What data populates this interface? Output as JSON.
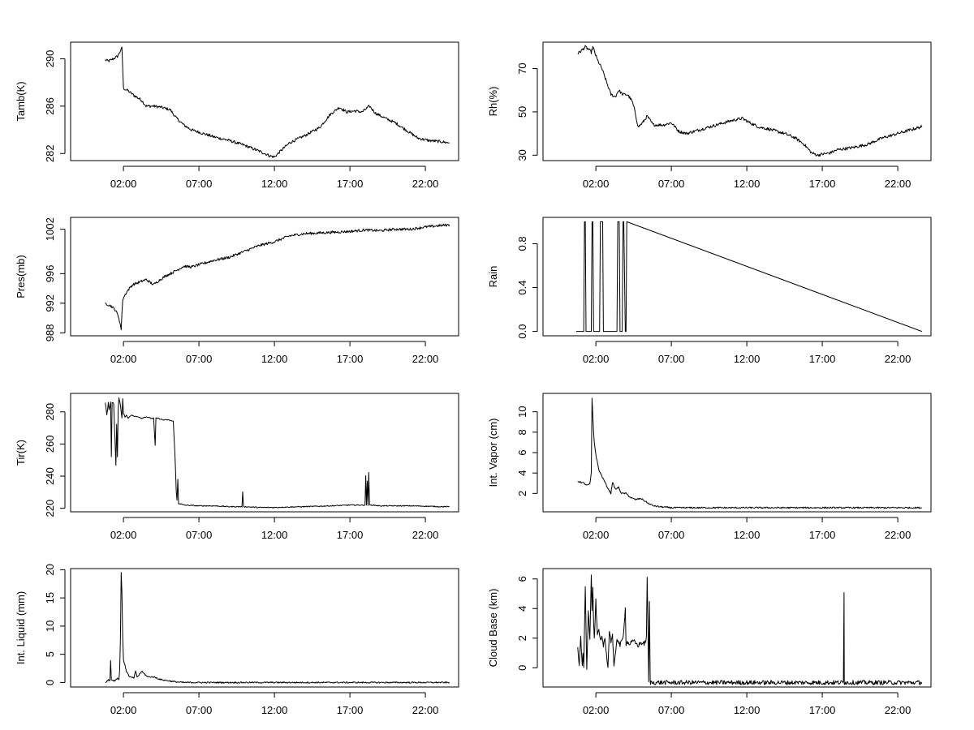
{
  "chart_data": [
    {
      "id": "tamb",
      "type": "line",
      "ylabel": "Tamb(K)",
      "xlim": [
        -1.5,
        24.2
      ],
      "ylim": [
        281.4,
        291.4
      ],
      "x_ticks": [
        2,
        7,
        12,
        17,
        22
      ],
      "x_tick_labels": [
        "02:00",
        "07:00",
        "12:00",
        "17:00",
        "22:00"
      ],
      "y_ticks": [
        282,
        286,
        290
      ],
      "y_tick_labels": [
        "282",
        "286",
        "290"
      ],
      "noise": 0.12,
      "x": [
        0.8,
        1.0,
        1.2,
        1.6,
        1.9,
        2.0,
        2.3,
        2.7,
        3.2,
        3.5,
        4.0,
        4.5,
        5.1,
        5.5,
        6.0,
        6.5,
        7.0,
        8.0,
        9.0,
        10.0,
        11.0,
        11.7,
        12.0,
        12.4,
        13.0,
        14.0,
        15.0,
        15.7,
        16.3,
        16.8,
        17.3,
        17.8,
        18.3,
        18.7,
        19.3,
        20.0,
        20.7,
        21.5,
        22.2,
        23.0,
        23.6
      ],
      "y": [
        289.9,
        289.8,
        289.9,
        290.2,
        290.9,
        287.5,
        287.3,
        286.9,
        286.5,
        286.0,
        286.0,
        285.9,
        285.7,
        285.0,
        284.4,
        284.0,
        283.8,
        283.4,
        283.1,
        282.7,
        282.2,
        281.8,
        281.7,
        282.2,
        282.9,
        283.5,
        284.2,
        285.3,
        285.9,
        285.5,
        285.6,
        285.5,
        286.0,
        285.4,
        285.0,
        284.6,
        284.0,
        283.3,
        283.1,
        283.0,
        282.9
      ]
    },
    {
      "id": "rh",
      "type": "line",
      "ylabel": "Rh(%)",
      "xlim": [
        -1.5,
        24.2
      ],
      "ylim": [
        27.5,
        82.2
      ],
      "x_ticks": [
        2,
        7,
        12,
        17,
        22
      ],
      "x_tick_labels": [
        "02:00",
        "07:00",
        "12:00",
        "17:00",
        "22:00"
      ],
      "y_ticks": [
        30,
        50,
        70
      ],
      "y_tick_labels": [
        "30",
        "50",
        "70"
      ],
      "noise": 0.7,
      "x": [
        0.8,
        1.0,
        1.3,
        1.5,
        1.7,
        1.8,
        2.1,
        2.4,
        2.7,
        3.0,
        3.3,
        3.5,
        3.8,
        4.1,
        4.4,
        4.6,
        4.8,
        5.1,
        5.4,
        5.8,
        6.5,
        7.0,
        7.5,
        8.0,
        8.5,
        9.0,
        10.0,
        11.0,
        11.7,
        12.2,
        12.8,
        13.5,
        14.5,
        15.2,
        15.8,
        16.3,
        16.7,
        17.0,
        17.5,
        18.0,
        19.0,
        20.0,
        21.0,
        22.0,
        23.0,
        23.5,
        23.6
      ],
      "y": [
        77.0,
        78.0,
        80.0,
        79.0,
        77.5,
        80.0,
        74.0,
        70.0,
        64.0,
        58.0,
        57.0,
        60.0,
        58.0,
        58.0,
        55.0,
        50.0,
        43.0,
        45.0,
        48.0,
        44.0,
        44.0,
        45.0,
        41.0,
        40.0,
        41.0,
        42.0,
        44.0,
        46.0,
        47.0,
        45.0,
        43.0,
        42.0,
        40.0,
        38.0,
        35.0,
        31.0,
        30.0,
        30.5,
        31.0,
        32.5,
        33.5,
        35.0,
        38.0,
        40.0,
        42.0,
        43.0,
        43.0
      ]
    },
    {
      "id": "pres",
      "type": "line",
      "ylabel": "Pres(mb)",
      "xlim": [
        -1.5,
        24.2
      ],
      "ylim": [
        987.6,
        1003.6
      ],
      "x_ticks": [
        2,
        7,
        12,
        17,
        22
      ],
      "x_tick_labels": [
        "02:00",
        "07:00",
        "12:00",
        "17:00",
        "22:00"
      ],
      "y_ticks": [
        988,
        992,
        996,
        1002
      ],
      "y_tick_labels": [
        "988",
        "992",
        "996",
        "1002"
      ],
      "noise": 0.18,
      "x": [
        0.8,
        1.2,
        1.5,
        1.7,
        1.85,
        1.95,
        2.2,
        2.6,
        3.0,
        3.5,
        4.0,
        4.3,
        4.8,
        5.3,
        6.0,
        6.5,
        7.0,
        8.0,
        9.0,
        10.0,
        11.0,
        12.0,
        13.0,
        14.0,
        15.0,
        16.0,
        17.0,
        18.0,
        19.0,
        20.0,
        21.0,
        22.0,
        23.0,
        23.6
      ],
      "y": [
        992.0,
        991.6,
        991.0,
        990.0,
        988.5,
        992.5,
        993.5,
        994.5,
        994.8,
        995.2,
        994.5,
        995.0,
        995.7,
        996.2,
        997.0,
        996.9,
        997.2,
        997.8,
        998.2,
        999.0,
        999.8,
        1000.3,
        1001.1,
        1001.4,
        1001.5,
        1001.6,
        1001.7,
        1001.9,
        1001.8,
        1002.0,
        1002.0,
        1002.3,
        1002.5,
        1002.6
      ]
    },
    {
      "id": "rain",
      "type": "line",
      "ylabel": "Rain",
      "xlim": [
        -1.5,
        24.2
      ],
      "ylim": [
        -0.04,
        1.04
      ],
      "x_ticks": [
        2,
        7,
        12,
        17,
        22
      ],
      "x_tick_labels": [
        "02:00",
        "07:00",
        "12:00",
        "17:00",
        "22:00"
      ],
      "y_ticks": [
        0,
        0.4,
        0.8
      ],
      "y_tick_labels": [
        "0.0",
        "0.4",
        "0.8"
      ],
      "noise": 0,
      "x": [
        0.7,
        1.2,
        1.25,
        1.3,
        1.35,
        1.7,
        1.75,
        1.8,
        1.85,
        2.25,
        2.3,
        2.45,
        2.5,
        2.8,
        3.4,
        3.45,
        3.55,
        3.6,
        3.75,
        3.8,
        3.85,
        3.95,
        4.0,
        4.05,
        23.6
      ],
      "y": [
        0,
        0,
        1,
        1,
        0,
        0,
        1,
        1,
        0,
        0,
        1,
        1,
        0,
        0,
        0,
        1,
        1,
        0,
        0,
        1,
        1,
        0,
        0,
        1,
        0
      ]
    },
    {
      "id": "tir",
      "type": "line",
      "ylabel": "Tir(K)",
      "xlim": [
        -1.5,
        24.2
      ],
      "ylim": [
        217.8,
        291.5
      ],
      "x_ticks": [
        2,
        7,
        12,
        17,
        22
      ],
      "x_tick_labels": [
        "02:00",
        "07:00",
        "12:00",
        "17:00",
        "22:00"
      ],
      "y_ticks": [
        220,
        240,
        260,
        280
      ],
      "y_tick_labels": [
        "220",
        "240",
        "260",
        "280"
      ],
      "noise": 0.3,
      "x": [
        0.8,
        0.9,
        1.0,
        1.05,
        1.15,
        1.2,
        1.25,
        1.35,
        1.45,
        1.5,
        1.55,
        1.6,
        1.65,
        1.7,
        1.8,
        1.9,
        1.95,
        2.0,
        2.1,
        2.2,
        2.3,
        2.5,
        2.8,
        3.0,
        3.2,
        3.5,
        3.8,
        4.0,
        4.1,
        4.15,
        4.3,
        4.6,
        5.0,
        5.3,
        5.4,
        5.5,
        5.55,
        5.6,
        5.65,
        5.7,
        6.0,
        7.0,
        8.0,
        9.0,
        9.85,
        9.9,
        9.95,
        10.0,
        11.0,
        12.0,
        13.0,
        14.0,
        15.0,
        16.0,
        17.0,
        17.5,
        18.0,
        18.05,
        18.1,
        18.15,
        18.2,
        18.25,
        18.3,
        18.4,
        18.5,
        19.0,
        20.0,
        21.0,
        22.0,
        23.0,
        23.6
      ],
      "y": [
        286,
        278,
        286,
        281,
        286,
        252,
        286,
        285,
        260,
        247,
        272,
        252,
        281,
        289,
        284,
        276,
        288,
        279,
        277,
        278,
        276,
        278,
        277,
        277,
        276,
        277,
        276,
        276,
        259,
        276,
        276,
        275,
        275,
        274,
        256,
        230,
        225,
        238,
        223,
        223,
        222,
        221.5,
        221.5,
        221,
        221,
        230,
        221,
        221,
        220.5,
        220.5,
        220.8,
        221,
        221.3,
        221.6,
        222,
        222,
        222,
        240,
        222,
        237,
        222,
        242,
        222,
        222,
        222,
        221.5,
        221.5,
        221.5,
        221.3,
        221,
        221
      ]
    },
    {
      "id": "vapor",
      "type": "line",
      "ylabel": "Int. Vapor (cm)",
      "xlim": [
        -1.5,
        24.2
      ],
      "ylim": [
        0.2,
        11.8
      ],
      "x_ticks": [
        2,
        7,
        12,
        17,
        22
      ],
      "x_tick_labels": [
        "02:00",
        "07:00",
        "12:00",
        "17:00",
        "22:00"
      ],
      "y_ticks": [
        2,
        4,
        6,
        8,
        10
      ],
      "y_tick_labels": [
        "2",
        "4",
        "6",
        "8",
        "10"
      ],
      "noise": 0.07,
      "x": [
        0.8,
        1.0,
        1.2,
        1.4,
        1.6,
        1.7,
        1.75,
        1.8,
        1.85,
        1.9,
        2.0,
        2.2,
        2.5,
        2.8,
        3.0,
        3.1,
        3.3,
        3.5,
        3.7,
        4.0,
        4.3,
        4.6,
        5.0,
        5.3,
        5.5,
        5.8,
        6.2,
        7.0,
        8.0,
        10.0,
        12.0,
        14.0,
        16.0,
        18.0,
        20.0,
        22.0,
        23.6
      ],
      "y": [
        3.2,
        3.1,
        3.0,
        2.8,
        2.9,
        4.0,
        11.3,
        9.5,
        8.0,
        7.0,
        5.8,
        4.3,
        3.4,
        2.5,
        2.0,
        3.1,
        2.4,
        2.6,
        2.0,
        2.0,
        1.6,
        1.4,
        1.5,
        1.2,
        1.0,
        0.8,
        0.7,
        0.6,
        0.6,
        0.6,
        0.6,
        0.6,
        0.6,
        0.6,
        0.6,
        0.6,
        0.6
      ]
    },
    {
      "id": "liquid",
      "type": "line",
      "ylabel": "Int. Liquid (mm)",
      "xlim": [
        -1.5,
        24.2
      ],
      "ylim": [
        -0.8,
        20.2
      ],
      "x_ticks": [
        2,
        7,
        12,
        17,
        22
      ],
      "x_tick_labels": [
        "02:00",
        "07:00",
        "12:00",
        "17:00",
        "22:00"
      ],
      "y_ticks": [
        0,
        5,
        10,
        15,
        20
      ],
      "y_tick_labels": [
        "0",
        "5",
        "10",
        "15",
        "20"
      ],
      "noise": 0.12,
      "x": [
        0.8,
        1.0,
        1.1,
        1.15,
        1.2,
        1.4,
        1.5,
        1.6,
        1.7,
        1.75,
        1.8,
        1.85,
        1.9,
        1.95,
        2.0,
        2.1,
        2.2,
        2.4,
        2.7,
        2.8,
        2.9,
        3.0,
        3.2,
        3.4,
        3.6,
        4.0,
        4.5,
        5.0,
        5.5,
        6.0,
        7.0,
        10.0,
        14.0,
        18.0,
        22.0,
        23.6
      ],
      "y": [
        0,
        0.5,
        0.3,
        4.0,
        0.5,
        0.3,
        0.5,
        0.8,
        0.5,
        2.0,
        8.0,
        19.5,
        16.0,
        8.0,
        4.0,
        3.0,
        2.0,
        1.0,
        0.8,
        2.0,
        1.0,
        1.2,
        2.0,
        1.5,
        1.0,
        1.0,
        0.5,
        0.3,
        0.1,
        0,
        0,
        0,
        0,
        0,
        0,
        0
      ]
    },
    {
      "id": "cloud",
      "type": "line",
      "ylabel": "Cloud Base (km)",
      "xlim": [
        -1.5,
        24.2
      ],
      "ylim": [
        -1.3,
        6.7
      ],
      "x_ticks": [
        2,
        7,
        12,
        17,
        22
      ],
      "x_tick_labels": [
        "02:00",
        "07:00",
        "12:00",
        "17:00",
        "22:00"
      ],
      "y_ticks": [
        0,
        2,
        4,
        6
      ],
      "y_tick_labels": [
        "0",
        "2",
        "4",
        "6"
      ],
      "noise": 0.15,
      "x": [
        0.8,
        0.9,
        1.0,
        1.1,
        1.15,
        1.2,
        1.3,
        1.4,
        1.45,
        1.5,
        1.6,
        1.7,
        1.75,
        1.8,
        1.85,
        1.9,
        2.0,
        2.1,
        2.2,
        2.3,
        2.4,
        2.5,
        2.6,
        2.7,
        2.8,
        2.9,
        3.0,
        3.1,
        3.2,
        3.4,
        3.6,
        3.8,
        3.95,
        4.0,
        4.05,
        4.2,
        4.5,
        4.8,
        5.0,
        5.2,
        5.35,
        5.4,
        5.45,
        5.5,
        5.55,
        5.6,
        5.62,
        6.0,
        8.0,
        10.0,
        12.0,
        14.0,
        16.0,
        17.0,
        18.0,
        18.4,
        18.42,
        18.44,
        18.46,
        18.48,
        18.5,
        18.6,
        20.0,
        22.0,
        23.6
      ],
      "y": [
        1.5,
        0,
        2.2,
        0,
        1.0,
        0,
        5.5,
        0,
        1.8,
        4.0,
        2.0,
        6.2,
        4.0,
        5.5,
        3.0,
        2.0,
        4.5,
        2.2,
        2.5,
        1.8,
        2.0,
        1.5,
        2.0,
        1.0,
        0,
        2.5,
        1.8,
        2.2,
        0,
        2.0,
        1.5,
        2.0,
        4.0,
        1.6,
        1.8,
        1.6,
        1.8,
        1.5,
        1.7,
        1.6,
        2.0,
        6.0,
        3.0,
        -1.0,
        4.5,
        -1.0,
        -1.0,
        -1.0,
        -1.0,
        -1.0,
        -1.0,
        -1.0,
        -1.0,
        -1.0,
        -1.0,
        -1.0,
        2.0,
        5.2,
        -1.0,
        -1.0,
        -1.0,
        -1.0,
        -1.0,
        -1.0,
        -1.0
      ]
    }
  ]
}
